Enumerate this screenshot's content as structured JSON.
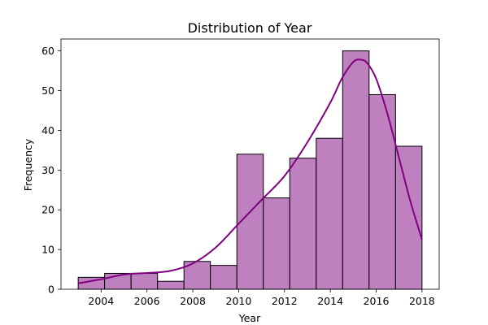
{
  "chart_data": {
    "type": "bar",
    "title": "Distribution of Year",
    "xlabel": "Year",
    "ylabel": "Frequency",
    "xlim": [
      2002.25,
      2018.75
    ],
    "ylim": [
      0,
      63
    ],
    "x_ticks": [
      2004,
      2006,
      2008,
      2010,
      2012,
      2014,
      2016,
      2018
    ],
    "y_ticks": [
      0,
      10,
      20,
      30,
      40,
      50,
      60
    ],
    "bins": [
      {
        "start": 2003.0,
        "end": 2004.154,
        "count": 3
      },
      {
        "start": 2004.154,
        "end": 2005.308,
        "count": 4
      },
      {
        "start": 2005.308,
        "end": 2006.462,
        "count": 4
      },
      {
        "start": 2006.462,
        "end": 2007.615,
        "count": 2
      },
      {
        "start": 2007.615,
        "end": 2008.769,
        "count": 7
      },
      {
        "start": 2008.769,
        "end": 2009.923,
        "count": 6
      },
      {
        "start": 2009.923,
        "end": 2011.077,
        "count": 34
      },
      {
        "start": 2011.077,
        "end": 2012.231,
        "count": 23
      },
      {
        "start": 2012.231,
        "end": 2013.385,
        "count": 33
      },
      {
        "start": 2013.385,
        "end": 2014.538,
        "count": 38
      },
      {
        "start": 2014.538,
        "end": 2015.692,
        "count": 60
      },
      {
        "start": 2015.692,
        "end": 2016.846,
        "count": 49
      },
      {
        "start": 2016.846,
        "end": 2018.0,
        "count": 36
      }
    ],
    "kde": {
      "x": [
        2003.0,
        2004.0,
        2005.0,
        2006.0,
        2007.0,
        2008.0,
        2009.0,
        2010.0,
        2011.0,
        2012.0,
        2013.0,
        2014.0,
        2014.5,
        2015.0,
        2015.3,
        2015.6,
        2016.0,
        2016.5,
        2017.0,
        2017.5,
        2018.0
      ],
      "y": [
        1.5,
        2.5,
        3.7,
        4.1,
        4.6,
        6.5,
        10.5,
        16.5,
        22.5,
        28.5,
        37.0,
        47.0,
        53.0,
        57.2,
        57.8,
        57.0,
        53.0,
        44.0,
        33.0,
        22.0,
        12.5
      ]
    },
    "grid": false,
    "colors": {
      "bar_fill": "#bf80bf",
      "bar_edge": "#000000",
      "kde_line": "#800080"
    }
  }
}
